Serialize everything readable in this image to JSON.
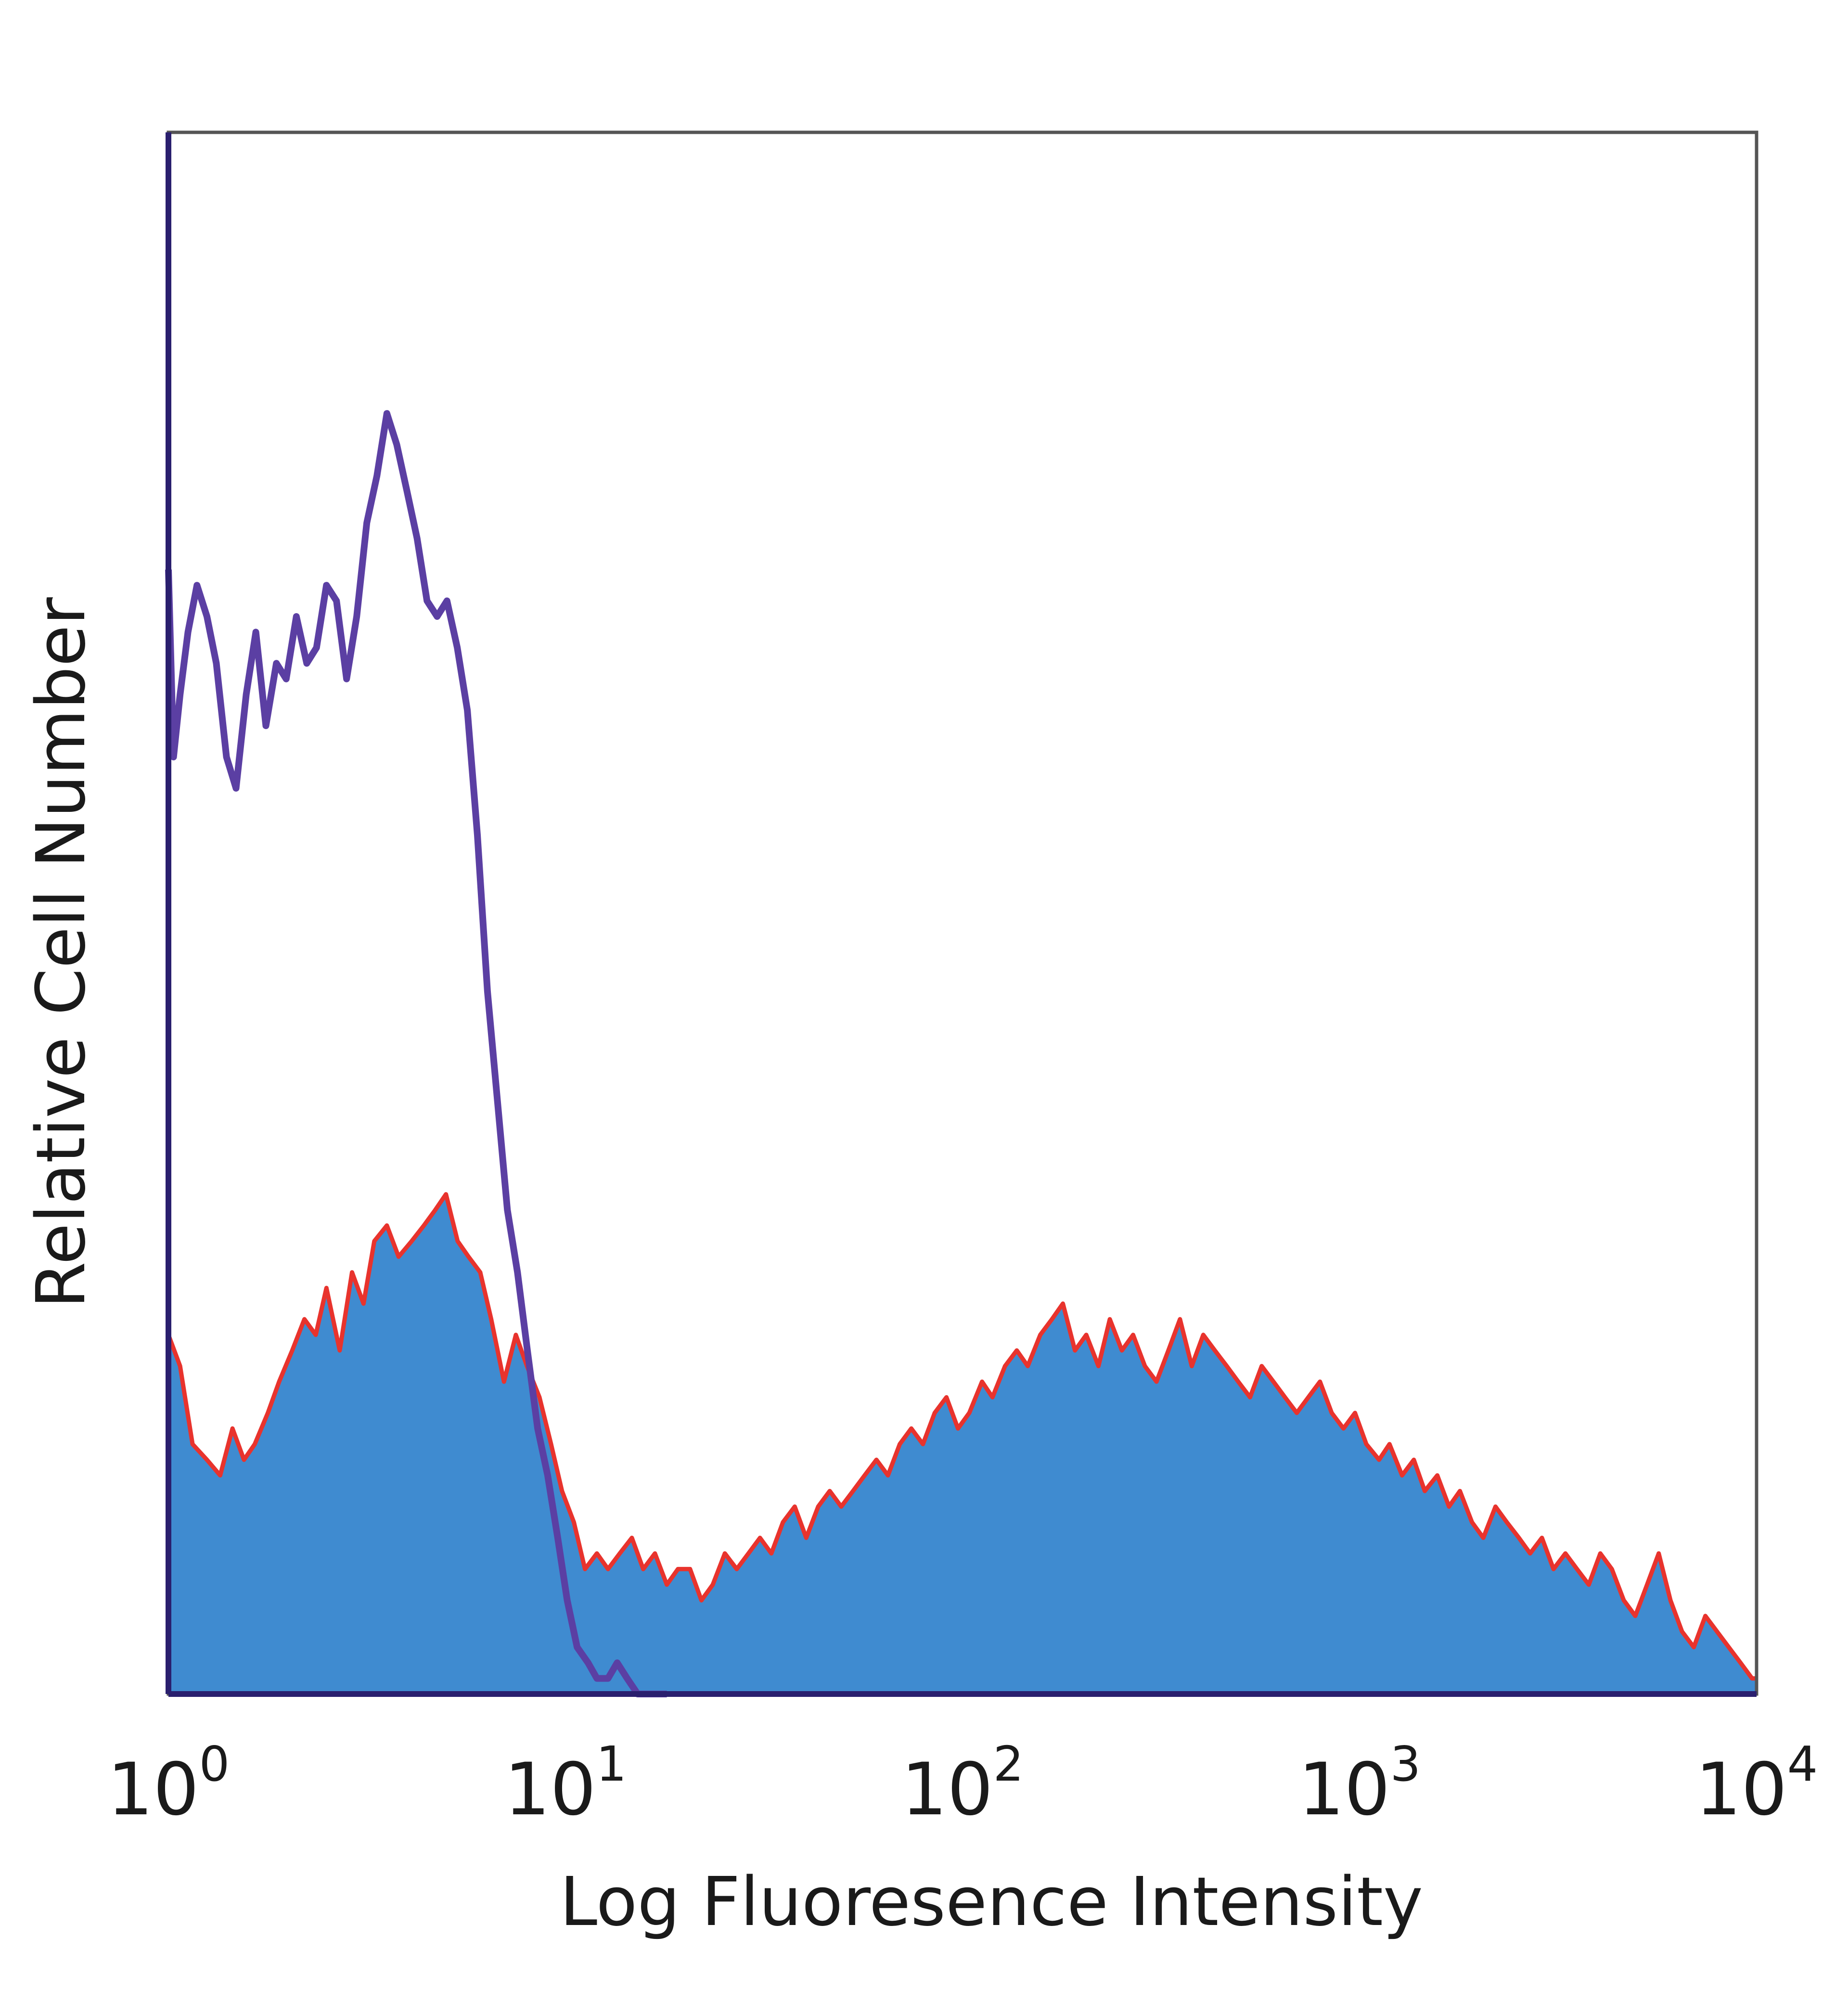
{
  "chart_data": {
    "type": "area",
    "title": "",
    "xlabel": "Log Fluoresence Intensity",
    "ylabel": "Relative Cell Number",
    "x_scale": "log",
    "xlim": [
      1,
      10000
    ],
    "ylim": [
      0,
      100
    ],
    "x_ticks": [
      {
        "value": 1,
        "base": "10",
        "exp": "0"
      },
      {
        "value": 10,
        "base": "10",
        "exp": "1"
      },
      {
        "value": 100,
        "base": "10",
        "exp": "2"
      },
      {
        "value": 1000,
        "base": "10",
        "exp": "3"
      },
      {
        "value": 10000,
        "base": "10",
        "exp": "4"
      }
    ],
    "grid": false,
    "legend": "none",
    "colors": {
      "filled": "#3f8bd0",
      "filled_outline": "#e8332d",
      "line": "#5b3fa3",
      "frame": "#555555",
      "axis": "#2a1f6e"
    },
    "series": [
      {
        "style": "filled",
        "x": [
          1.0,
          1.07,
          1.15,
          1.25,
          1.35,
          1.45,
          1.55,
          1.65,
          1.78,
          1.9,
          2.05,
          2.2,
          2.35,
          2.5,
          2.7,
          2.9,
          3.1,
          3.3,
          3.55,
          3.8,
          4.1,
          4.4,
          4.7,
          5.0,
          5.35,
          5.7,
          6.1,
          6.5,
          7.0,
          7.5,
          8.0,
          8.6,
          9.2,
          9.8,
          10.5,
          11.2,
          12.0,
          12.8,
          13.7,
          14.7,
          15.7,
          16.8,
          18.0,
          19.2,
          20.6,
          22.0,
          23.5,
          25.2,
          27.0,
          28.9,
          30.9,
          33.0,
          35.3,
          37.8,
          40.4,
          43.3,
          46.3,
          49.5,
          53.0,
          56.7,
          60.7,
          64.9,
          69.5,
          74.3,
          79.5,
          85.1,
          91.1,
          97.4,
          104,
          112,
          119,
          128,
          137,
          146,
          157,
          168,
          179,
          192,
          205,
          220,
          235,
          252,
          269,
          288,
          308,
          330,
          353,
          378,
          404,
          432,
          463,
          495,
          530,
          567,
          607,
          649,
          695,
          743,
          795,
          851,
          911,
          974,
          1040,
          1120,
          1190,
          1280,
          1370,
          1460,
          1570,
          1680,
          1790,
          1920,
          2050,
          2200,
          2350,
          2520,
          2690,
          2880,
          3080,
          3300,
          3530,
          3780,
          4040,
          4320,
          4630,
          4950,
          5300,
          5670,
          6070,
          6490,
          6950,
          7430,
          7950,
          8510,
          9110,
          9740,
          10000
        ],
        "values": [
          23,
          21,
          16,
          15,
          14,
          17,
          15,
          16,
          18,
          20,
          22,
          24,
          23,
          26,
          22,
          27,
          25,
          29,
          30,
          28,
          29,
          30,
          31,
          32,
          29,
          28,
          27,
          24,
          20,
          23,
          21,
          19,
          16,
          13,
          11,
          8,
          9,
          8,
          9,
          10,
          8,
          9,
          7,
          8,
          8,
          6,
          7,
          9,
          8,
          9,
          10,
          9,
          11,
          12,
          10,
          12,
          13,
          12,
          13,
          14,
          15,
          14,
          16,
          17,
          16,
          18,
          19,
          17,
          18,
          20,
          19,
          21,
          22,
          21,
          23,
          24,
          25,
          22,
          23,
          21,
          24,
          22,
          23,
          21,
          20,
          22,
          24,
          21,
          23,
          22,
          21,
          20,
          19,
          21,
          20,
          19,
          18,
          19,
          20,
          18,
          17,
          18,
          16,
          15,
          16,
          14,
          15,
          13,
          14,
          12,
          13,
          11,
          10,
          12,
          11,
          10,
          9,
          10,
          8,
          9,
          8,
          7,
          9,
          8,
          6,
          5,
          7,
          9,
          6,
          4,
          3,
          5,
          4,
          3,
          2,
          1,
          1
        ]
      },
      {
        "style": "line",
        "x": [
          1.0,
          1.03,
          1.07,
          1.12,
          1.18,
          1.25,
          1.32,
          1.4,
          1.48,
          1.57,
          1.66,
          1.76,
          1.87,
          1.98,
          2.1,
          2.23,
          2.36,
          2.5,
          2.65,
          2.81,
          2.98,
          3.16,
          3.35,
          3.55,
          3.76,
          3.99,
          4.23,
          4.48,
          4.75,
          5.03,
          5.34,
          5.66,
          6.0,
          6.36,
          6.74,
          7.14,
          7.57,
          8.02,
          8.51,
          9.02,
          9.56,
          10.1,
          10.7,
          11.4,
          12.0,
          12.8,
          13.5,
          14.3,
          15.2,
          16.1,
          17.1,
          18.0
        ],
        "values": [
          72,
          60,
          64,
          68,
          71,
          69,
          66,
          60,
          58,
          64,
          68,
          62,
          66,
          65,
          69,
          66,
          67,
          71,
          70,
          65,
          69,
          75,
          78,
          82,
          80,
          77,
          74,
          70,
          69,
          70,
          67,
          63,
          55,
          45,
          38,
          31,
          27,
          22,
          17,
          14,
          10,
          6,
          3,
          2,
          1,
          1,
          2,
          1,
          0,
          0,
          0,
          0
        ]
      }
    ]
  }
}
